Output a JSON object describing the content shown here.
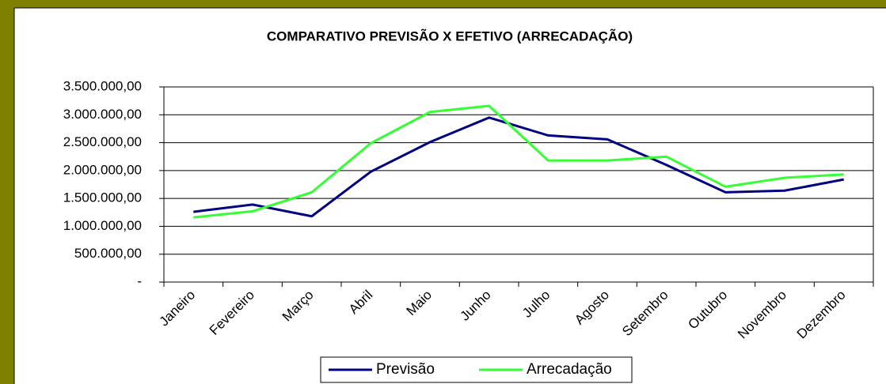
{
  "chart_data": {
    "type": "line",
    "title": "COMPARATIVO PREVISÃO X EFETIVO (ARRECADAÇÃO)",
    "categories": [
      "Janeiro",
      "Fevereiro",
      "Março",
      "Abril",
      "Maio",
      "Junho",
      "Julho",
      "Agosto",
      "Setembro",
      "Outubro",
      "Novembro",
      "Dezembro"
    ],
    "series": [
      {
        "name": "Previsão",
        "color": "#000080",
        "values": [
          1260000,
          1390000,
          1180000,
          1980000,
          2510000,
          2950000,
          2630000,
          2560000,
          2100000,
          1610000,
          1640000,
          1840000
        ]
      },
      {
        "name": "Arrecadação",
        "color": "#33ff33",
        "values": [
          1160000,
          1270000,
          1610000,
          2490000,
          3050000,
          3160000,
          2180000,
          2180000,
          2250000,
          1710000,
          1870000,
          1930000
        ]
      }
    ],
    "ylim": [
      0,
      3500000
    ],
    "yticks": [
      {
        "value": 0,
        "label": "-"
      },
      {
        "value": 500000,
        "label": "500.000,00"
      },
      {
        "value": 1000000,
        "label": "1.000.000,00"
      },
      {
        "value": 1500000,
        "label": "1.500.000,00"
      },
      {
        "value": 2000000,
        "label": "2.000.000,00"
      },
      {
        "value": 2500000,
        "label": "2.500.000,00"
      },
      {
        "value": 3000000,
        "label": "3.000.000,00"
      },
      {
        "value": 3500000,
        "label": "3.500.000,00"
      }
    ],
    "grid": true,
    "legend": "bottom"
  }
}
